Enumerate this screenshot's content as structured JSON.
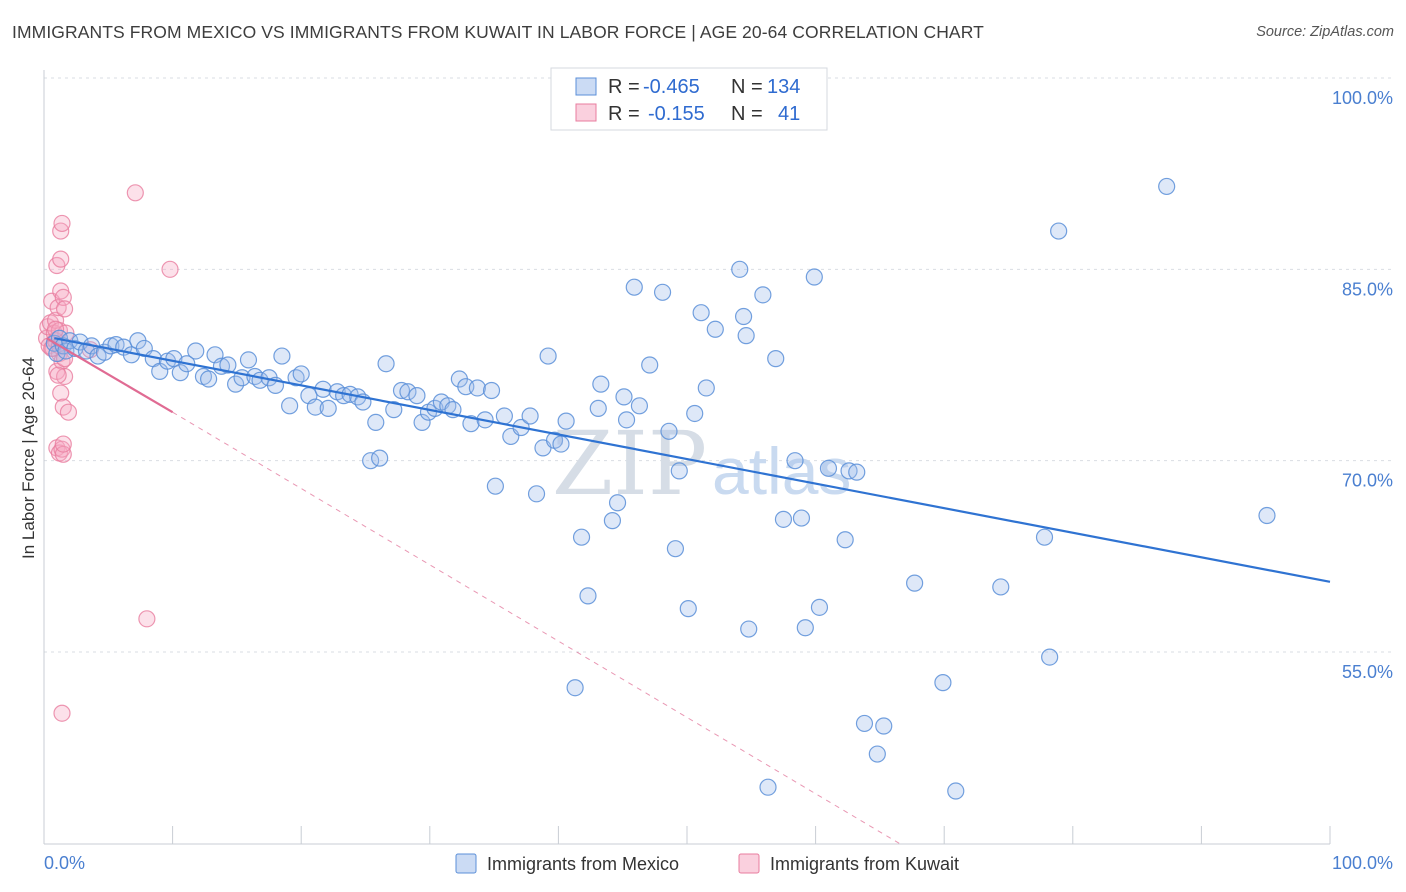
{
  "title": "IMMIGRANTS FROM MEXICO VS IMMIGRANTS FROM KUWAIT IN LABOR FORCE | AGE 20-64 CORRELATION CHART",
  "source": "Source: ZipAtlas.com",
  "watermark": {
    "zip": "ZIP",
    "atlas": "atlas"
  },
  "colors": {
    "mexico": "#5b8fd8",
    "mexico_fill": "rgba(160,190,235,0.35)",
    "mexico_line": "#2f73d2",
    "kuwait": "#e87d9f",
    "kuwait_fill": "rgba(245,170,195,0.35)",
    "kuwait_line": "#e06b93",
    "grid": "#d9dde3",
    "tick_text": "#4a7fd0"
  },
  "legend_top": {
    "rows": [
      {
        "series": "Immigrants from Mexico",
        "r_label": "R =",
        "r_value": "-0.465",
        "n_label": "N =",
        "n_value": "134"
      },
      {
        "series": "Immigrants from Kuwait",
        "r_label": "R =",
        "r_value": "-0.155",
        "n_label": "N =",
        "n_value": "41"
      }
    ]
  },
  "chart_data": {
    "type": "scatter",
    "title": "IMMIGRANTS FROM MEXICO VS IMMIGRANTS FROM KUWAIT IN LABOR FORCE | AGE 20-64 CORRELATION CHART",
    "xlabel": "",
    "ylabel": "In Labor Force | Age 20-64",
    "xlim": [
      0,
      100
    ],
    "ylim": [
      40,
      102
    ],
    "x_tick_labels": [
      "0.0%",
      "100.0%"
    ],
    "y_ticks": [
      55,
      70,
      85,
      100
    ],
    "y_tick_labels": [
      "55.0%",
      "70.0%",
      "85.0%",
      "100.0%"
    ],
    "grid": true,
    "legend_position": "bottom",
    "legend": [
      "Immigrants from Mexico",
      "Immigrants from Kuwait"
    ],
    "series": [
      {
        "name": "Immigrants from Mexico",
        "trend": {
          "x": [
            0.8,
            100
          ],
          "y": [
            79.6,
            60.5
          ]
        },
        "points": [
          [
            0.8,
            79.2
          ],
          [
            1.0,
            78.4
          ],
          [
            1.2,
            79.6
          ],
          [
            1.5,
            79.0
          ],
          [
            1.7,
            78.6
          ],
          [
            2.0,
            79.4
          ],
          [
            2.4,
            78.8
          ],
          [
            2.8,
            79.3
          ],
          [
            3.3,
            78.6
          ],
          [
            3.7,
            79.0
          ],
          [
            4.2,
            78.2
          ],
          [
            4.7,
            78.5
          ],
          [
            5.2,
            79.0
          ],
          [
            5.6,
            79.1
          ],
          [
            6.2,
            78.9
          ],
          [
            6.8,
            78.3
          ],
          [
            7.3,
            79.4
          ],
          [
            7.8,
            78.8
          ],
          [
            8.5,
            78.0
          ],
          [
            9.0,
            77.0
          ],
          [
            9.6,
            77.8
          ],
          [
            10.1,
            78.0
          ],
          [
            10.6,
            76.9
          ],
          [
            11.1,
            77.6
          ],
          [
            11.8,
            78.6
          ],
          [
            12.4,
            76.6
          ],
          [
            12.8,
            76.4
          ],
          [
            13.3,
            78.3
          ],
          [
            13.8,
            77.4
          ],
          [
            14.3,
            77.5
          ],
          [
            14.9,
            76.0
          ],
          [
            15.4,
            76.5
          ],
          [
            15.9,
            77.9
          ],
          [
            16.4,
            76.6
          ],
          [
            16.8,
            76.3
          ],
          [
            17.5,
            76.5
          ],
          [
            18.0,
            75.9
          ],
          [
            18.5,
            78.2
          ],
          [
            19.1,
            74.3
          ],
          [
            19.6,
            76.5
          ],
          [
            20.0,
            76.8
          ],
          [
            20.6,
            75.1
          ],
          [
            21.1,
            74.2
          ],
          [
            21.7,
            75.6
          ],
          [
            22.1,
            74.1
          ],
          [
            22.8,
            75.4
          ],
          [
            23.3,
            75.1
          ],
          [
            23.8,
            75.2
          ],
          [
            24.4,
            75.0
          ],
          [
            24.8,
            74.6
          ],
          [
            25.4,
            70.0
          ],
          [
            25.8,
            73.0
          ],
          [
            26.1,
            70.2
          ],
          [
            26.6,
            77.6
          ],
          [
            27.2,
            74.0
          ],
          [
            27.8,
            75.5
          ],
          [
            28.3,
            75.4
          ],
          [
            29.0,
            75.1
          ],
          [
            29.4,
            73.0
          ],
          [
            29.9,
            73.8
          ],
          [
            30.4,
            74.1
          ],
          [
            30.9,
            74.6
          ],
          [
            31.4,
            74.3
          ],
          [
            31.8,
            74.0
          ],
          [
            32.3,
            76.4
          ],
          [
            32.8,
            75.8
          ],
          [
            33.2,
            72.9
          ],
          [
            33.7,
            75.7
          ],
          [
            34.3,
            73.2
          ],
          [
            34.8,
            75.5
          ],
          [
            35.1,
            68.0
          ],
          [
            35.8,
            73.5
          ],
          [
            36.3,
            71.9
          ],
          [
            37.1,
            72.6
          ],
          [
            37.8,
            73.5
          ],
          [
            38.3,
            67.4
          ],
          [
            38.8,
            71.0
          ],
          [
            39.2,
            78.2
          ],
          [
            39.7,
            71.6
          ],
          [
            40.2,
            71.3
          ],
          [
            40.6,
            73.1
          ],
          [
            41.3,
            52.2
          ],
          [
            41.8,
            64.0
          ],
          [
            42.3,
            59.4
          ],
          [
            43.1,
            74.1
          ],
          [
            43.3,
            76.0
          ],
          [
            44.2,
            65.3
          ],
          [
            44.6,
            66.7
          ],
          [
            45.1,
            75.0
          ],
          [
            45.3,
            73.2
          ],
          [
            45.9,
            83.6
          ],
          [
            46.3,
            74.3
          ],
          [
            47.1,
            77.5
          ],
          [
            48.1,
            83.2
          ],
          [
            48.6,
            72.3
          ],
          [
            49.1,
            63.1
          ],
          [
            49.4,
            69.2
          ],
          [
            50.1,
            58.4
          ],
          [
            50.6,
            73.7
          ],
          [
            51.1,
            81.6
          ],
          [
            51.5,
            75.7
          ],
          [
            52.2,
            80.3
          ],
          [
            54.1,
            85.0
          ],
          [
            54.4,
            81.3
          ],
          [
            54.6,
            79.8
          ],
          [
            54.8,
            56.8
          ],
          [
            55.9,
            83.0
          ],
          [
            56.3,
            44.4
          ],
          [
            56.9,
            78.0
          ],
          [
            57.5,
            65.4
          ],
          [
            58.4,
            70.0
          ],
          [
            58.9,
            65.5
          ],
          [
            59.2,
            56.9
          ],
          [
            59.9,
            84.4
          ],
          [
            60.3,
            58.5
          ],
          [
            61.0,
            69.4
          ],
          [
            62.3,
            63.8
          ],
          [
            62.6,
            69.2
          ],
          [
            63.2,
            69.1
          ],
          [
            63.8,
            49.4
          ],
          [
            64.8,
            47.0
          ],
          [
            65.3,
            49.2
          ],
          [
            67.7,
            60.4
          ],
          [
            69.9,
            52.6
          ],
          [
            70.9,
            44.1
          ],
          [
            74.4,
            60.1
          ],
          [
            77.8,
            64.0
          ],
          [
            78.2,
            54.6
          ],
          [
            78.9,
            88.0
          ],
          [
            87.3,
            91.5
          ],
          [
            95.1,
            65.7
          ]
        ]
      },
      {
        "name": "Immigrants from Kuwait",
        "trend": {
          "x": [
            0.2,
            10.0
          ],
          "y": [
            79.6,
            73.8
          ],
          "dashed_to": {
            "x": 66.5,
            "y": 40.0
          }
        },
        "points": [
          [
            0.2,
            79.6
          ],
          [
            0.3,
            80.5
          ],
          [
            0.4,
            79.0
          ],
          [
            0.5,
            80.8
          ],
          [
            0.6,
            82.5
          ],
          [
            0.7,
            78.8
          ],
          [
            0.8,
            80.0
          ],
          [
            0.9,
            81.0
          ],
          [
            1.0,
            77.0
          ],
          [
            1.1,
            82.0
          ],
          [
            1.2,
            80.2
          ],
          [
            1.0,
            85.3
          ],
          [
            1.3,
            85.8
          ],
          [
            1.3,
            88.0
          ],
          [
            1.4,
            88.6
          ],
          [
            1.3,
            83.3
          ],
          [
            1.5,
            82.8
          ],
          [
            1.6,
            81.9
          ],
          [
            1.2,
            78.4
          ],
          [
            1.4,
            77.8
          ],
          [
            1.6,
            76.6
          ],
          [
            1.1,
            76.7
          ],
          [
            1.3,
            75.3
          ],
          [
            1.5,
            74.2
          ],
          [
            1.9,
            73.8
          ],
          [
            1.0,
            71.0
          ],
          [
            1.2,
            70.6
          ],
          [
            1.4,
            70.9
          ],
          [
            1.5,
            70.5
          ],
          [
            1.5,
            71.3
          ],
          [
            0.9,
            79.4
          ],
          [
            1.7,
            80.0
          ],
          [
            0.6,
            78.8
          ],
          [
            3.6,
            78.7
          ],
          [
            7.1,
            91.0
          ],
          [
            9.8,
            85.0
          ],
          [
            8.0,
            57.6
          ],
          [
            1.4,
            50.2
          ],
          [
            0.9,
            80.3
          ],
          [
            1.2,
            79.0
          ],
          [
            1.6,
            78.0
          ]
        ]
      }
    ]
  }
}
